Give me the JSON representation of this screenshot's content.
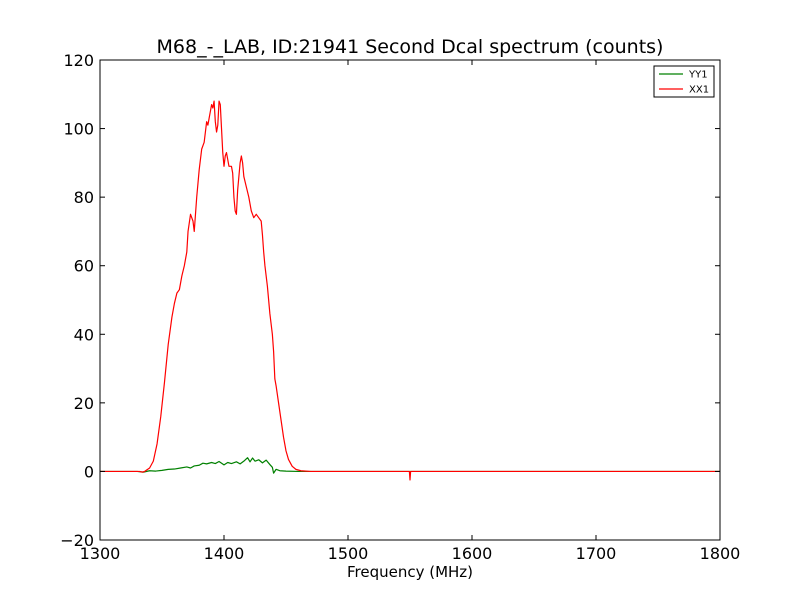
{
  "chart_data": {
    "type": "line",
    "title": "M68_-_LAB, ID:21941 Second Dcal spectrum (counts)",
    "xlabel": "Frequency (MHz)",
    "ylabel": "",
    "xlim": [
      1300,
      1800
    ],
    "ylim": [
      -20,
      120
    ],
    "xticks": [
      1300,
      1400,
      1500,
      1600,
      1700,
      1800
    ],
    "yticks": [
      -20,
      0,
      20,
      40,
      60,
      80,
      100,
      120
    ],
    "xtick_labels": [
      "1300",
      "1400",
      "1500",
      "1600",
      "1700",
      "1800"
    ],
    "ytick_labels": [
      "−20",
      "0",
      "20",
      "40",
      "60",
      "80",
      "100",
      "120"
    ],
    "grid": false,
    "legend_position": "top-right",
    "series": [
      {
        "name": "YY1",
        "color": "#008000",
        "points": [
          [
            1300,
            0
          ],
          [
            1330,
            0
          ],
          [
            1335,
            -0.2
          ],
          [
            1340,
            0.2
          ],
          [
            1345,
            0.1
          ],
          [
            1350,
            0.3
          ],
          [
            1355,
            0.6
          ],
          [
            1360,
            0.7
          ],
          [
            1365,
            1.0
          ],
          [
            1370,
            1.3
          ],
          [
            1373,
            1.0
          ],
          [
            1376,
            1.6
          ],
          [
            1380,
            1.8
          ],
          [
            1383,
            2.4
          ],
          [
            1386,
            2.2
          ],
          [
            1390,
            2.6
          ],
          [
            1393,
            2.3
          ],
          [
            1396,
            2.9
          ],
          [
            1400,
            1.9
          ],
          [
            1403,
            2.6
          ],
          [
            1406,
            2.3
          ],
          [
            1410,
            2.8
          ],
          [
            1413,
            2.2
          ],
          [
            1416,
            3.0
          ],
          [
            1419,
            4.0
          ],
          [
            1421,
            2.8
          ],
          [
            1423,
            3.9
          ],
          [
            1425,
            3.0
          ],
          [
            1428,
            3.4
          ],
          [
            1431,
            2.5
          ],
          [
            1434,
            3.3
          ],
          [
            1437,
            2.0
          ],
          [
            1439,
            1.2
          ],
          [
            1440,
            -0.5
          ],
          [
            1442,
            0.6
          ],
          [
            1445,
            0.2
          ],
          [
            1450,
            0.1
          ],
          [
            1460,
            0
          ],
          [
            1480,
            0
          ],
          [
            1550,
            0
          ],
          [
            1650,
            0
          ],
          [
            1800,
            0
          ]
        ]
      },
      {
        "name": "XX1",
        "color": "#ff0000",
        "points": [
          [
            1300,
            0
          ],
          [
            1325,
            0
          ],
          [
            1332,
            0
          ],
          [
            1334,
            -0.2
          ],
          [
            1336,
            0
          ],
          [
            1340,
            1
          ],
          [
            1343,
            3
          ],
          [
            1346,
            8
          ],
          [
            1349,
            16
          ],
          [
            1352,
            26
          ],
          [
            1355,
            37
          ],
          [
            1358,
            45
          ],
          [
            1360,
            49
          ],
          [
            1362,
            52
          ],
          [
            1364,
            53
          ],
          [
            1366,
            57
          ],
          [
            1368,
            60
          ],
          [
            1370,
            64
          ],
          [
            1371,
            70
          ],
          [
            1373,
            75
          ],
          [
            1375,
            73
          ],
          [
            1376,
            70
          ],
          [
            1378,
            80
          ],
          [
            1380,
            88
          ],
          [
            1382,
            94
          ],
          [
            1384,
            96
          ],
          [
            1386,
            102
          ],
          [
            1387,
            101
          ],
          [
            1388,
            103
          ],
          [
            1390,
            107
          ],
          [
            1391,
            106
          ],
          [
            1392,
            108
          ],
          [
            1393,
            102
          ],
          [
            1394,
            99
          ],
          [
            1395,
            101
          ],
          [
            1396,
            108
          ],
          [
            1397,
            107
          ],
          [
            1398,
            100
          ],
          [
            1399,
            93
          ],
          [
            1400,
            89
          ],
          [
            1401,
            92
          ],
          [
            1402,
            93
          ],
          [
            1403,
            91
          ],
          [
            1404,
            89
          ],
          [
            1406,
            89
          ],
          [
            1407,
            87
          ],
          [
            1408,
            80
          ],
          [
            1409,
            76
          ],
          [
            1410,
            75
          ],
          [
            1411,
            82
          ],
          [
            1413,
            90
          ],
          [
            1414,
            92
          ],
          [
            1415,
            90
          ],
          [
            1416,
            86
          ],
          [
            1418,
            83
          ],
          [
            1420,
            80
          ],
          [
            1422,
            76
          ],
          [
            1424,
            74
          ],
          [
            1426,
            75
          ],
          [
            1428,
            74
          ],
          [
            1430,
            73
          ],
          [
            1431,
            69
          ],
          [
            1432,
            64
          ],
          [
            1433,
            60
          ],
          [
            1435,
            54
          ],
          [
            1437,
            46
          ],
          [
            1439,
            40
          ],
          [
            1440,
            35
          ],
          [
            1441,
            27
          ],
          [
            1442,
            25
          ],
          [
            1444,
            20
          ],
          [
            1446,
            15
          ],
          [
            1448,
            10
          ],
          [
            1450,
            6
          ],
          [
            1452,
            3.5
          ],
          [
            1455,
            1.5
          ],
          [
            1458,
            0.6
          ],
          [
            1462,
            0.2
          ],
          [
            1466,
            0.1
          ],
          [
            1470,
            0
          ],
          [
            1549.5,
            0
          ],
          [
            1550,
            -2.5
          ],
          [
            1550.5,
            0
          ],
          [
            1800,
            0
          ]
        ]
      }
    ]
  }
}
